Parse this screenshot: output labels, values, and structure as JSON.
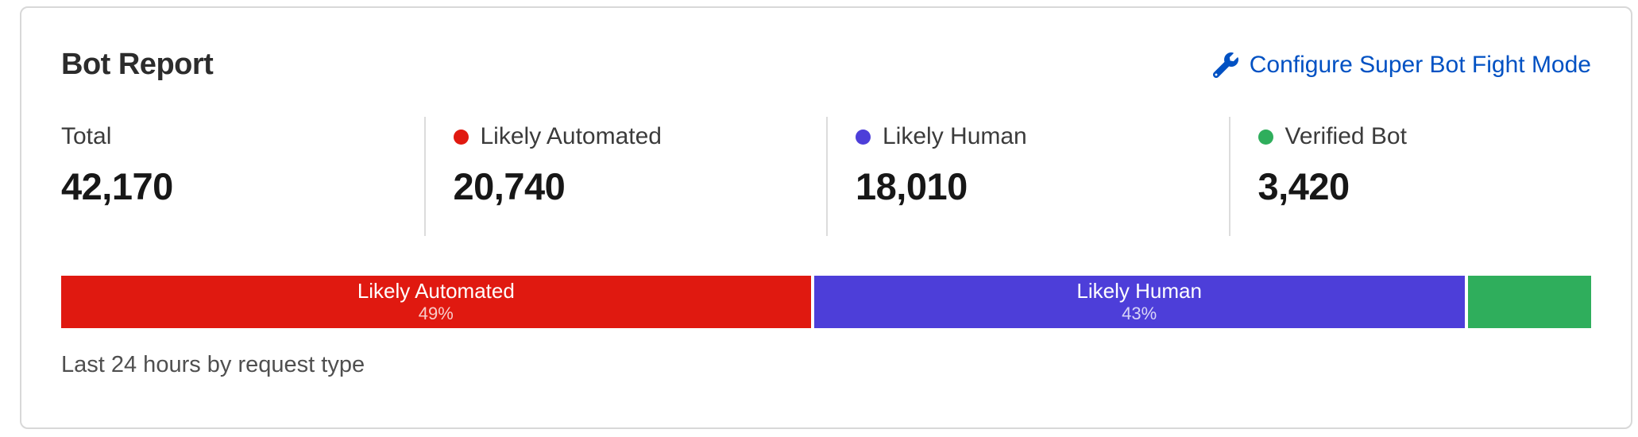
{
  "card": {
    "title": "Bot Report",
    "action": {
      "label": "Configure Super Bot Fight Mode",
      "icon": "wrench",
      "color": "#0051c3"
    },
    "stats": [
      {
        "label": "Total",
        "value": "42,170",
        "dot_color": null
      },
      {
        "label": "Likely Automated",
        "value": "20,740",
        "dot_color": "#e01910"
      },
      {
        "label": "Likely Human",
        "value": "18,010",
        "dot_color": "#4d3ed9"
      },
      {
        "label": "Verified Bot",
        "value": "3,420",
        "dot_color": "#2fae5c"
      }
    ],
    "footer": "Last 24 hours by request type"
  },
  "chart_data": {
    "type": "bar",
    "orientation": "horizontal-stacked",
    "title": "Bot Report",
    "caption": "Last 24 hours by request type",
    "total": 42170,
    "categories": [
      "Likely Automated",
      "Likely Human",
      "Verified Bot"
    ],
    "values": [
      20740,
      18010,
      3420
    ],
    "percentages": [
      49,
      43,
      8
    ],
    "colors": [
      "#e01910",
      "#4d3ed9",
      "#2fae5c"
    ],
    "segments": [
      {
        "name": "Likely Automated",
        "pct_label": "49%",
        "fraction": 0.492,
        "color": "#e01910",
        "show_label": true
      },
      {
        "name": "Likely Human",
        "pct_label": "43%",
        "fraction": 0.427,
        "color": "#4d3ed9",
        "show_label": true
      },
      {
        "name": "Verified Bot",
        "pct_label": "8%",
        "fraction": 0.081,
        "color": "#2fae5c",
        "show_label": false
      }
    ]
  }
}
